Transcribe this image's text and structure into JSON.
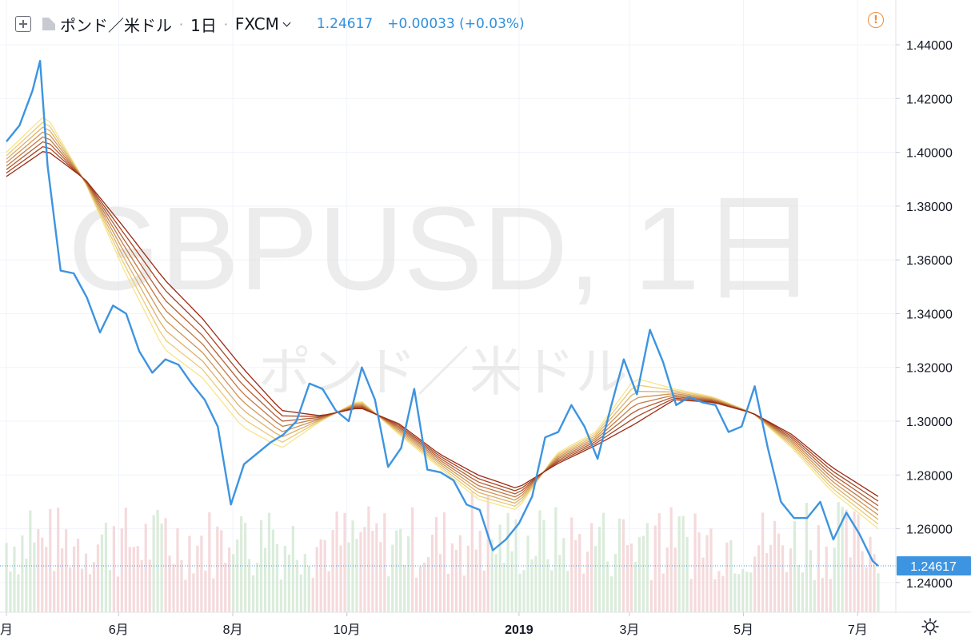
{
  "header": {
    "symbol": "ポンド／米ドル",
    "interval": "1日",
    "exchange": "FXCM",
    "last_price": "1.24617",
    "change": "+0.00033 (+0.03%)"
  },
  "watermark": {
    "line1": "GBPUSD, 1日",
    "line2": "ポンド／米ドル"
  },
  "icons": {
    "collapse": "collapse-icon",
    "symbol_flag": "flag-icon",
    "exchange_dropdown": "chevron-down-icon",
    "warning": "warning-icon",
    "settings": "gear-icon"
  },
  "colors": {
    "price_line": "#3d94e0",
    "ribbon_fast": "#f6e58a",
    "ribbon_slow": "#9a2a12",
    "volume_up": "#cfe6cf",
    "volume_down": "#f1cdd0",
    "last_price_label": "#3d94e0",
    "warning": "#f08b33"
  },
  "chart_data": {
    "type": "line",
    "title": "",
    "xlabel": "",
    "ylabel": "",
    "x_ticks": [
      "月",
      "6月",
      "8月",
      "10月",
      "2019",
      "3月",
      "5月",
      "7月"
    ],
    "y_ticks": [
      "1.44000",
      "1.42000",
      "1.40000",
      "1.38000",
      "1.36000",
      "1.34000",
      "1.32000",
      "1.30000",
      "1.28000",
      "1.26000",
      "1.24000"
    ],
    "ylim": [
      1.2352,
      1.4507
    ],
    "last_value_label": "1.24617",
    "grid": true,
    "series": [
      {
        "type": "line",
        "color": "#3d94e0",
        "x": [
          "2018-04-02",
          "2018-04-09",
          "2018-04-16",
          "2018-04-20",
          "2018-04-24",
          "2018-05-01",
          "2018-05-08",
          "2018-05-15",
          "2018-05-22",
          "2018-05-29",
          "2018-06-05",
          "2018-06-12",
          "2018-06-19",
          "2018-06-26",
          "2018-07-03",
          "2018-07-10",
          "2018-07-17",
          "2018-07-24",
          "2018-07-31",
          "2018-08-07",
          "2018-08-14",
          "2018-08-21",
          "2018-08-28",
          "2018-09-04",
          "2018-09-11",
          "2018-09-18",
          "2018-09-25",
          "2018-10-02",
          "2018-10-09",
          "2018-10-16",
          "2018-10-23",
          "2018-10-30",
          "2018-11-06",
          "2018-11-13",
          "2018-11-20",
          "2018-11-27",
          "2018-12-04",
          "2018-12-11",
          "2018-12-18",
          "2018-12-25",
          "2019-01-01",
          "2019-01-08",
          "2019-01-15",
          "2019-01-22",
          "2019-01-29",
          "2019-02-05",
          "2019-02-12",
          "2019-02-19",
          "2019-02-26",
          "2019-03-05",
          "2019-03-12",
          "2019-03-19",
          "2019-03-26",
          "2019-04-02",
          "2019-04-09",
          "2019-04-16",
          "2019-04-23",
          "2019-04-30",
          "2019-05-07",
          "2019-05-14",
          "2019-05-21",
          "2019-05-28",
          "2019-06-04",
          "2019-06-11",
          "2019-06-18",
          "2019-06-25",
          "2019-07-02",
          "2019-07-09",
          "2019-07-12"
        ],
        "y": [
          1.404,
          1.41,
          1.423,
          1.434,
          1.395,
          1.356,
          1.355,
          1.346,
          1.333,
          1.343,
          1.34,
          1.326,
          1.318,
          1.323,
          1.321,
          1.314,
          1.308,
          1.298,
          1.269,
          1.284,
          1.288,
          1.292,
          1.295,
          1.3,
          1.314,
          1.312,
          1.304,
          1.3,
          1.32,
          1.308,
          1.283,
          1.29,
          1.312,
          1.282,
          1.281,
          1.278,
          1.269,
          1.267,
          1.252,
          1.256,
          1.262,
          1.272,
          1.294,
          1.296,
          1.306,
          1.298,
          1.286,
          1.305,
          1.323,
          1.31,
          1.334,
          1.322,
          1.306,
          1.309,
          1.307,
          1.306,
          1.296,
          1.298,
          1.313,
          1.29,
          1.27,
          1.264,
          1.264,
          1.27,
          1.256,
          1.266,
          1.258,
          1.248,
          1.2462
        ]
      },
      {
        "type": "line",
        "color": "#f6e58a",
        "x": [
          "2018-04-02",
          "2018-04-23",
          "2018-05-14",
          "2018-06-04",
          "2018-06-25",
          "2018-07-16",
          "2018-08-06",
          "2018-08-27",
          "2018-09-17",
          "2018-10-08",
          "2018-10-29",
          "2018-11-19",
          "2018-12-10",
          "2018-12-31",
          "2019-01-21",
          "2019-02-11",
          "2019-03-04",
          "2019-03-25",
          "2019-04-15",
          "2019-05-06",
          "2019-05-27",
          "2019-06-17",
          "2019-07-12"
        ],
        "y": [
          1.4,
          1.414,
          1.389,
          1.356,
          1.327,
          1.316,
          1.298,
          1.29,
          1.3,
          1.308,
          1.295,
          1.283,
          1.271,
          1.267,
          1.288,
          1.296,
          1.316,
          1.312,
          1.309,
          1.303,
          1.29,
          1.274,
          1.26
        ]
      },
      {
        "type": "line",
        "color": "#9a2a12",
        "x": [
          "2018-04-02",
          "2018-04-23",
          "2018-05-14",
          "2018-06-04",
          "2018-06-25",
          "2018-07-16",
          "2018-08-06",
          "2018-08-27",
          "2018-09-17",
          "2018-10-08",
          "2018-10-29",
          "2018-11-19",
          "2018-12-10",
          "2018-12-31",
          "2019-01-21",
          "2019-02-11",
          "2019-03-04",
          "2019-03-25",
          "2019-04-15",
          "2019-05-06",
          "2019-05-27",
          "2019-06-17",
          "2019-07-12"
        ],
        "y": [
          1.391,
          1.401,
          1.39,
          1.372,
          1.353,
          1.338,
          1.32,
          1.304,
          1.302,
          1.305,
          1.299,
          1.288,
          1.28,
          1.275,
          1.284,
          1.291,
          1.299,
          1.308,
          1.307,
          1.303,
          1.295,
          1.283,
          1.272
        ]
      }
    ]
  }
}
